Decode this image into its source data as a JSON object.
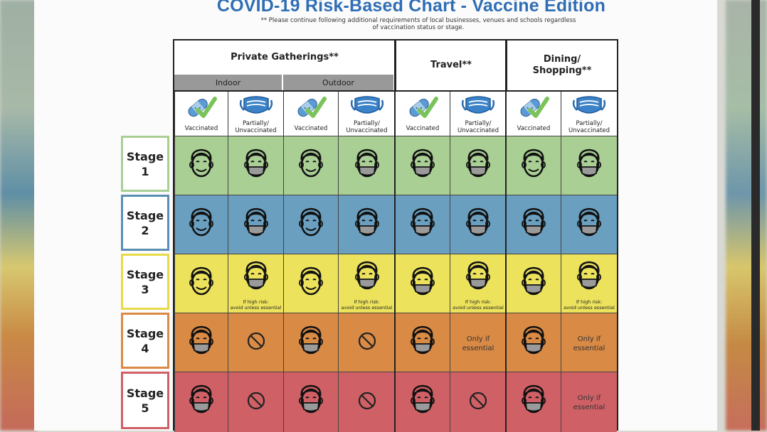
{
  "title": "COVID-19 Risk-Based Chart - Vaccine Edition",
  "note_line1": "** Please continue following additional requirements of local businesses, venues and schools regardless",
  "note_line2": "of vaccination status or stage.",
  "headers": {
    "private": "Private Gatherings**",
    "indoor": "Indoor",
    "outdoor": "Outdoor",
    "travel": "Travel**",
    "dining_l1": "Dining/",
    "dining_l2": "Shopping**"
  },
  "col_labels": {
    "vacc": "Vaccinated",
    "unvacc_l1": "Partially/",
    "unvacc_l2": "Unvaccinated"
  },
  "stages": [
    {
      "word": "Stage",
      "num": "1",
      "color": "#a9cf95",
      "border": "#a9cf95"
    },
    {
      "word": "Stage",
      "num": "2",
      "color": "#6a9fbf",
      "border": "#5a8eb3"
    },
    {
      "word": "Stage",
      "num": "3",
      "color": "#ece25c",
      "border": "#e8d94a"
    },
    {
      "word": "Stage",
      "num": "4",
      "color": "#d98a45",
      "border": "#d98a45"
    },
    {
      "word": "Stage",
      "num": "5",
      "color": "#cf6066",
      "border": "#cf6066"
    }
  ],
  "cell_text": {
    "high_risk_l1": "If high risk:",
    "high_risk_l2": "avoid unless essential",
    "only_l1": "Only if",
    "only_l2": "essential"
  },
  "icons": {
    "vaccinated": "bandage-check-icon",
    "unvaccinated": "face-mask-icon",
    "smile": "smiling-face-icon",
    "masked": "masked-face-icon",
    "no": "prohibited-icon"
  }
}
